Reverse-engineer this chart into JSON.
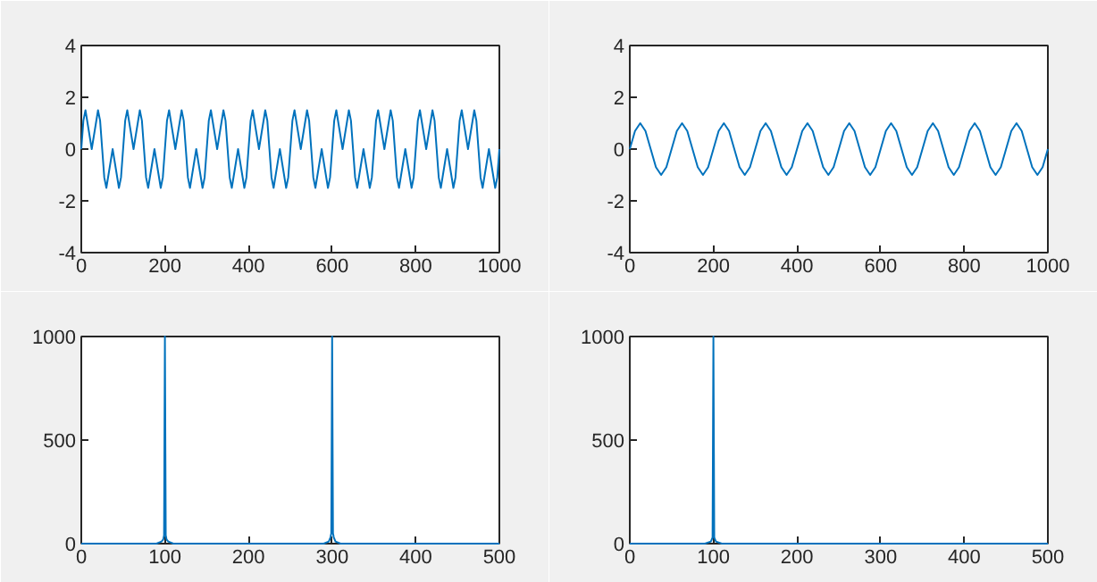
{
  "chart_data": [
    {
      "type": "line",
      "x": [
        0,
        5,
        10,
        25,
        40,
        45,
        50,
        55,
        60,
        75,
        90,
        95,
        100,
        105,
        110,
        125,
        140,
        145,
        150,
        155,
        160,
        175,
        190,
        195,
        200,
        205,
        210,
        225,
        240,
        245,
        250,
        255,
        260,
        275,
        290,
        295,
        300,
        305,
        310,
        325,
        340,
        345,
        350,
        355,
        360,
        375,
        390,
        395,
        400,
        405,
        410,
        425,
        440,
        445,
        450,
        455,
        460,
        475,
        490,
        495,
        500,
        505,
        510,
        525,
        540,
        545,
        550,
        555,
        560,
        575,
        590,
        595,
        600,
        605,
        610,
        625,
        640,
        645,
        650,
        655,
        660,
        675,
        690,
        695,
        700,
        705,
        710,
        725,
        740,
        745,
        750,
        755,
        760,
        775,
        790,
        795,
        800,
        805,
        810,
        825,
        840,
        845,
        850,
        855,
        860,
        875,
        890,
        895,
        900,
        905,
        910,
        925,
        940,
        945,
        950,
        955,
        960,
        975,
        990,
        995,
        1000
      ],
      "series": [
        {
          "color": "#0072bd",
          "values": [
            0,
            1.1,
            1.5,
            0,
            1.5,
            1.1,
            0,
            -1.1,
            -1.5,
            0,
            -1.5,
            -1.1,
            0,
            1.1,
            1.5,
            0,
            1.5,
            1.1,
            0,
            -1.1,
            -1.5,
            0,
            -1.5,
            -1.1,
            0,
            1.1,
            1.5,
            0,
            1.5,
            1.1,
            0,
            -1.1,
            -1.5,
            0,
            -1.5,
            -1.1,
            0,
            1.1,
            1.5,
            0,
            1.5,
            1.1,
            0,
            -1.1,
            -1.5,
            0,
            -1.5,
            -1.1,
            0,
            1.1,
            1.5,
            0,
            1.5,
            1.1,
            0,
            -1.1,
            -1.5,
            0,
            -1.5,
            -1.1,
            0,
            1.1,
            1.5,
            0,
            1.5,
            1.1,
            0,
            -1.1,
            -1.5,
            0,
            -1.5,
            -1.1,
            0,
            1.1,
            1.5,
            0,
            1.5,
            1.1,
            0,
            -1.1,
            -1.5,
            0,
            -1.5,
            -1.1,
            0,
            1.1,
            1.5,
            0,
            1.5,
            1.1,
            0,
            -1.1,
            -1.5,
            0,
            -1.5,
            -1.1,
            0,
            1.1,
            1.5,
            0,
            1.5,
            1.1,
            0,
            -1.1,
            -1.5,
            0,
            -1.5,
            -1.1,
            0,
            1.1,
            1.5,
            0,
            1.5,
            1.1,
            0,
            -1.1,
            -1.5,
            0,
            -1.5,
            -1.1,
            0
          ]
        }
      ],
      "xlim": [
        0,
        1000
      ],
      "ylim": [
        -4,
        4
      ],
      "xticks": [
        0,
        200,
        400,
        600,
        800,
        1000
      ],
      "yticks": [
        -4,
        -2,
        0,
        2,
        4
      ]
    },
    {
      "type": "line",
      "x": [
        0,
        12.5,
        25,
        37.5,
        50,
        62.5,
        75,
        87.5,
        100,
        112.5,
        125,
        137.5,
        150,
        162.5,
        175,
        187.5,
        200,
        212.5,
        225,
        237.5,
        250,
        262.5,
        275,
        287.5,
        300,
        312.5,
        325,
        337.5,
        350,
        362.5,
        375,
        387.5,
        400,
        412.5,
        425,
        437.5,
        450,
        462.5,
        475,
        487.5,
        500,
        512.5,
        525,
        537.5,
        550,
        562.5,
        575,
        587.5,
        600,
        612.5,
        625,
        637.5,
        650,
        662.5,
        675,
        687.5,
        700,
        712.5,
        725,
        737.5,
        750,
        762.5,
        775,
        787.5,
        800,
        812.5,
        825,
        837.5,
        850,
        862.5,
        875,
        887.5,
        900,
        912.5,
        925,
        937.5,
        950,
        962.5,
        975,
        987.5,
        1000
      ],
      "series": [
        {
          "color": "#0072bd",
          "values": [
            0,
            0.7,
            1,
            0.7,
            0,
            -0.7,
            -1,
            -0.7,
            0,
            0.7,
            1,
            0.7,
            0,
            -0.7,
            -1,
            -0.7,
            0,
            0.7,
            1,
            0.7,
            0,
            -0.7,
            -1,
            -0.7,
            0,
            0.7,
            1,
            0.7,
            0,
            -0.7,
            -1,
            -0.7,
            0,
            0.7,
            1,
            0.7,
            0,
            -0.7,
            -1,
            -0.7,
            0,
            0.7,
            1,
            0.7,
            0,
            -0.7,
            -1,
            -0.7,
            0,
            0.7,
            1,
            0.7,
            0,
            -0.7,
            -1,
            -0.7,
            0,
            0.7,
            1,
            0.7,
            0,
            -0.7,
            -1,
            -0.7,
            0,
            0.7,
            1,
            0.7,
            0,
            -0.7,
            -1,
            -0.7,
            0,
            0.7,
            1,
            0.7,
            0,
            -0.7,
            -1,
            -0.7,
            0
          ]
        }
      ],
      "xlim": [
        0,
        1000
      ],
      "ylim": [
        -4,
        4
      ],
      "xticks": [
        0,
        200,
        400,
        600,
        800,
        1000
      ],
      "yticks": [
        -4,
        -2,
        0,
        2,
        4
      ]
    },
    {
      "type": "line",
      "x": [
        0,
        90,
        96,
        98,
        99,
        100,
        101,
        102,
        104,
        110,
        200,
        290,
        296,
        298,
        299,
        300,
        301,
        302,
        304,
        310,
        400,
        500
      ],
      "series": [
        {
          "color": "#0072bd",
          "values": [
            0,
            0,
            10,
            20,
            40,
            1000,
            40,
            20,
            10,
            0,
            0,
            0,
            10,
            30,
            50,
            1000,
            50,
            30,
            10,
            0,
            0,
            0
          ]
        }
      ],
      "xlim": [
        0,
        500
      ],
      "ylim": [
        0,
        1000
      ],
      "xticks": [
        0,
        100,
        200,
        300,
        400,
        500
      ],
      "yticks": [
        0,
        500,
        1000
      ]
    },
    {
      "type": "line",
      "x": [
        0,
        90,
        97,
        99,
        100,
        101,
        103,
        110,
        200,
        300,
        400,
        500
      ],
      "series": [
        {
          "color": "#0072bd",
          "values": [
            0,
            0,
            10,
            30,
            1000,
            30,
            10,
            0,
            0,
            0,
            0,
            0
          ]
        }
      ],
      "xlim": [
        0,
        500
      ],
      "ylim": [
        0,
        1000
      ],
      "xticks": [
        0,
        100,
        200,
        300,
        400,
        500
      ],
      "yticks": [
        0,
        500,
        1000
      ]
    }
  ]
}
